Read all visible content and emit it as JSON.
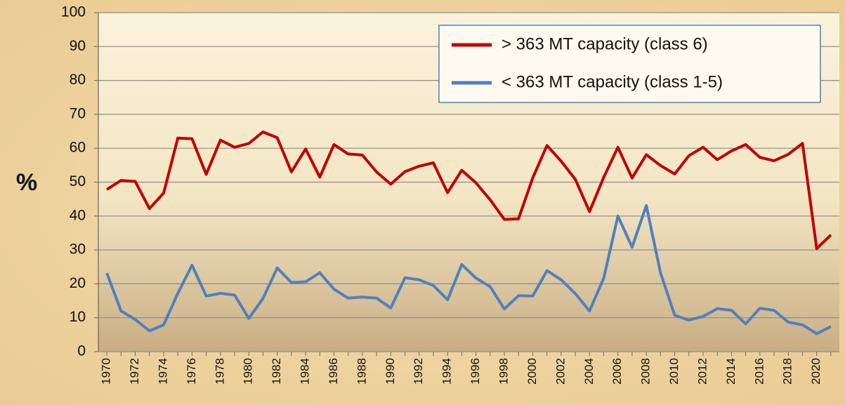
{
  "chart_data": {
    "type": "line",
    "y_label": "%",
    "x": [
      1970,
      1971,
      1972,
      1973,
      1974,
      1975,
      1976,
      1977,
      1978,
      1979,
      1980,
      1981,
      1982,
      1983,
      1984,
      1985,
      1986,
      1987,
      1988,
      1989,
      1990,
      1991,
      1992,
      1993,
      1994,
      1995,
      1996,
      1997,
      1998,
      1999,
      2000,
      2001,
      2002,
      2003,
      2004,
      2005,
      2006,
      2007,
      2008,
      2009,
      2010,
      2011,
      2012,
      2013,
      2014,
      2015,
      2016,
      2017,
      2018,
      2019,
      2020,
      2021
    ],
    "series": [
      {
        "name": "> 363 MT capacity (class 6)",
        "color": "#c00000",
        "values": [
          47.8,
          50.5,
          50.2,
          42.2,
          46.8,
          63,
          62.8,
          52.3,
          62.4,
          60.3,
          61.4,
          64.8,
          63.1,
          53,
          59.8,
          51.5,
          61.1,
          58.3,
          58,
          53,
          49.4,
          53.1,
          54.7,
          55.7,
          46.9,
          53.5,
          49.8,
          44.8,
          39,
          39.2,
          51.2,
          60.8,
          56.2,
          50.8,
          41.3,
          51.4,
          60.3,
          51.2,
          58.1,
          54.9,
          52.4,
          57.8,
          60.3,
          56.6,
          59.2,
          61.1,
          57.3,
          56.3,
          58.2,
          61.4,
          30.4,
          34.4
        ]
      },
      {
        "name": "< 363 MT capacity (class 1-5)",
        "color": "#4f81bd",
        "values": [
          23.2,
          12,
          9.5,
          6.1,
          7.9,
          17.2,
          25.5,
          16.4,
          17.2,
          16.7,
          9.8,
          15.7,
          24.7,
          20.4,
          20.6,
          23.3,
          18.4,
          15.8,
          16.1,
          15.8,
          12.9,
          21.8,
          21.2,
          19.5,
          15.3,
          25.7,
          21.7,
          19.2,
          12.6,
          16.5,
          16.4,
          23.9,
          21.2,
          17.1,
          12,
          21.7,
          40,
          30.8,
          43.1,
          23.3,
          10.7,
          9.3,
          10.4,
          12.7,
          12.2,
          8.2,
          12.8,
          12.2,
          8.7,
          7.9,
          5.3,
          7.4
        ]
      }
    ],
    "xlim": [
      1969.4,
      2021.6
    ],
    "xticks": [
      1970,
      1972,
      1974,
      1976,
      1978,
      1980,
      1982,
      1984,
      1986,
      1988,
      1990,
      1992,
      1994,
      1996,
      1998,
      2000,
      2002,
      2004,
      2006,
      2008,
      2010,
      2012,
      2014,
      2016,
      2018,
      2020
    ],
    "ylim": [
      0,
      100
    ],
    "yticks": [
      0,
      10,
      20,
      30,
      40,
      50,
      60,
      70,
      80,
      90,
      100
    ],
    "grid": true,
    "legend": "upper-right"
  }
}
